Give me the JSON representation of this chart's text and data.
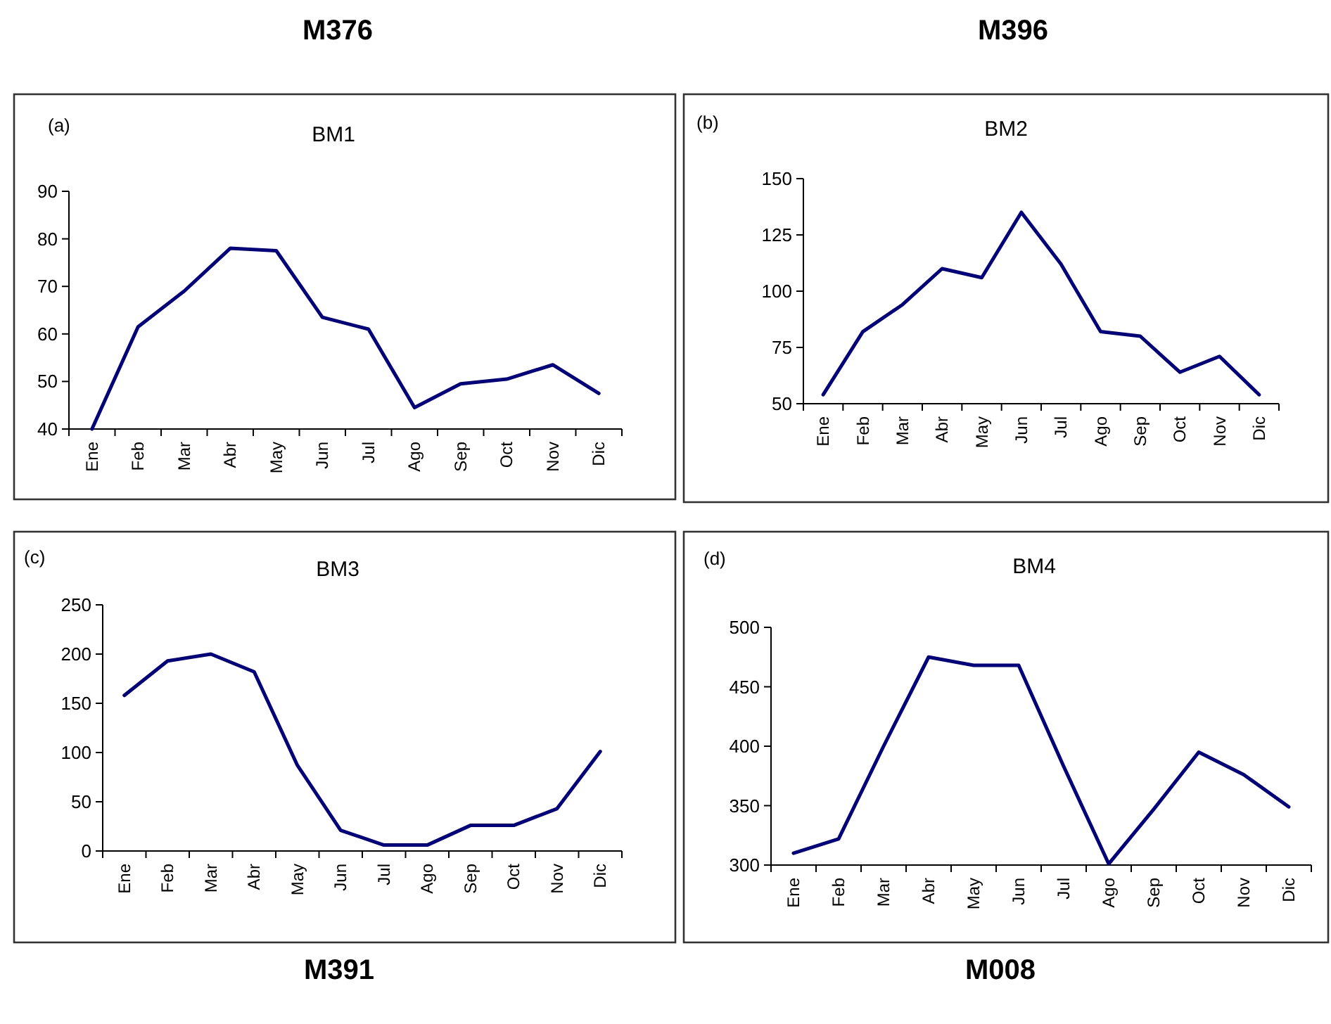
{
  "chart_data": [
    {
      "type": "line",
      "title": "BM1",
      "subtitle": "M376",
      "annotations": [
        "(a)"
      ],
      "categories": [
        "Ene",
        "Feb",
        "Mar",
        "Abr",
        "May",
        "Jun",
        "Jul",
        "Ago",
        "Sep",
        "Oct",
        "Nov",
        "Dic"
      ],
      "values": [
        40,
        61.5,
        69,
        78,
        77.5,
        63.5,
        61,
        44.5,
        49.5,
        50.5,
        53.5,
        47.5
      ],
      "color": "#000080",
      "ylim": [
        40,
        90
      ],
      "yticks": [
        40,
        50,
        60,
        70,
        80,
        90
      ]
    },
    {
      "type": "line",
      "title": "BM2",
      "subtitle": "M396",
      "annotations": [
        "(b)"
      ],
      "categories": [
        "Ene",
        "Feb",
        "Mar",
        "Abr",
        "May",
        "Jun",
        "Jul",
        "Ago",
        "Sep",
        "Oct",
        "Nov",
        "Dic"
      ],
      "values": [
        54,
        82,
        94,
        110,
        106,
        135,
        112,
        82,
        80,
        64,
        71,
        54
      ],
      "color": "#000080",
      "ylim": [
        50,
        150
      ],
      "yticks": [
        50,
        75,
        100,
        125,
        150
      ]
    },
    {
      "type": "line",
      "title": "BM3",
      "subtitle": "M391",
      "annotations": [
        "(c)"
      ],
      "categories": [
        "Ene",
        "Feb",
        "Mar",
        "Abr",
        "May",
        "Jun",
        "Jul",
        "Ago",
        "Sep",
        "Oct",
        "Nov",
        "Dic"
      ],
      "values": [
        158,
        193,
        200,
        182,
        87,
        21,
        6,
        6,
        26,
        26,
        43,
        101
      ],
      "color": "#000080",
      "ylim": [
        0,
        250
      ],
      "yticks": [
        0,
        50,
        100,
        150,
        200,
        250
      ]
    },
    {
      "type": "line",
      "title": "BM4",
      "subtitle": "M008",
      "annotations": [
        "(d)"
      ],
      "categories": [
        "Ene",
        "Feb",
        "Mar",
        "Abr",
        "May",
        "Jun",
        "Jul",
        "Ago",
        "Sep",
        "Oct",
        "Nov",
        "Dic"
      ],
      "values": [
        310,
        322,
        400,
        475,
        468,
        468,
        383,
        301,
        347,
        395,
        376,
        349
      ],
      "color": "#000080",
      "ylim": [
        300,
        500
      ],
      "yticks": [
        300,
        350,
        400,
        450,
        500
      ]
    }
  ]
}
